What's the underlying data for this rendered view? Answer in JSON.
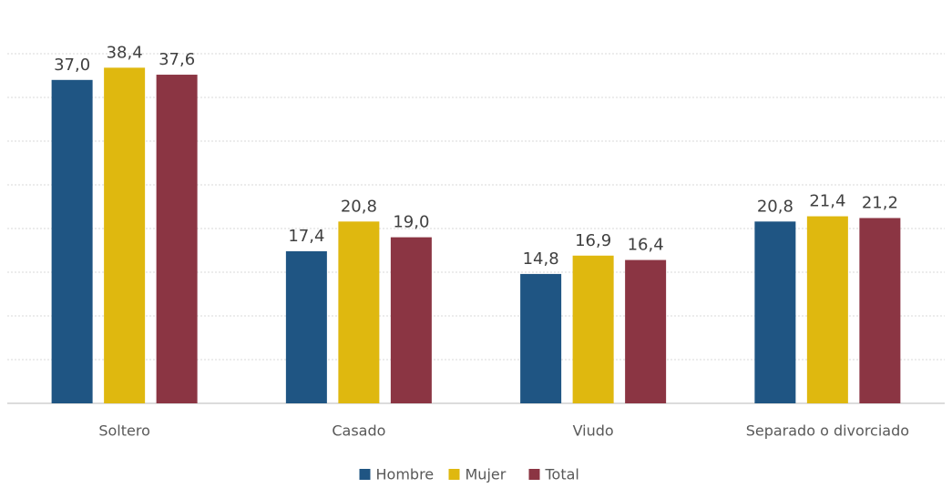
{
  "chart_data": {
    "type": "bar",
    "categories": [
      "Soltero",
      "Casado",
      "Viudo",
      "Separado o divorciado"
    ],
    "series": [
      {
        "name": "Hombre",
        "color": "#1f5583",
        "values": [
          37.0,
          17.4,
          14.8,
          20.8
        ],
        "value_labels": [
          "37,0",
          "17,4",
          "14,8",
          "20,8"
        ]
      },
      {
        "name": "Mujer",
        "color": "#dfb80f",
        "values": [
          38.4,
          20.8,
          16.9,
          21.4
        ],
        "value_labels": [
          "38,4",
          "20,8",
          "16,9",
          "21,4"
        ]
      },
      {
        "name": "Total",
        "color": "#8b3543",
        "values": [
          37.6,
          19.0,
          16.4,
          21.2
        ],
        "value_labels": [
          "37,6",
          "19,0",
          "16,4",
          "21,2"
        ]
      }
    ],
    "ylim": [
      0,
      40
    ],
    "yticks": [
      0,
      5,
      10,
      15,
      20,
      25,
      30,
      35,
      40
    ],
    "grid": true,
    "legend": "bottom"
  }
}
